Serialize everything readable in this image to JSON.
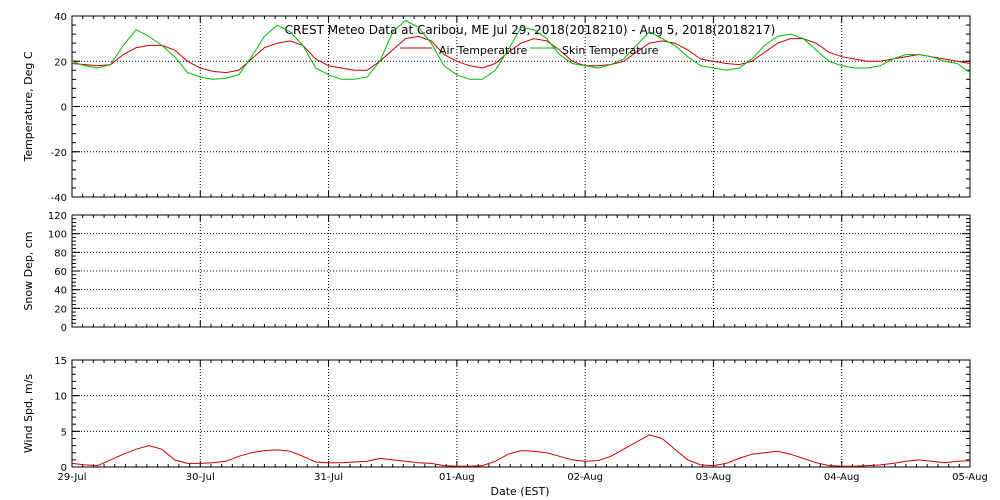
{
  "chart_data": [
    {
      "type": "line",
      "title": "CREST Meteo Data at Caribou, ME   Jul 29, 2018(2018210) - Aug  5, 2018(2018217)",
      "ylabel": "Temperature, Deg C",
      "ylim": [
        -40,
        40
      ],
      "yticks": [
        -40,
        -20,
        0,
        20,
        40
      ],
      "xlim": [
        0,
        7
      ],
      "grid": true,
      "legend": "top-center",
      "series": [
        {
          "name": "Air Temperature",
          "color": "#cc0000",
          "x": [
            0,
            0.1,
            0.2,
            0.3,
            0.4,
            0.5,
            0.6,
            0.7,
            0.8,
            0.9,
            1.0,
            1.1,
            1.2,
            1.3,
            1.4,
            1.5,
            1.6,
            1.7,
            1.8,
            1.9,
            2.0,
            2.1,
            2.2,
            2.3,
            2.4,
            2.5,
            2.6,
            2.7,
            2.8,
            2.9,
            3.0,
            3.1,
            3.2,
            3.3,
            3.4,
            3.5,
            3.6,
            3.7,
            3.8,
            3.9,
            4.0,
            4.1,
            4.2,
            4.3,
            4.4,
            4.5,
            4.6,
            4.7,
            4.8,
            4.9,
            5.0,
            5.1,
            5.2,
            5.3,
            5.4,
            5.5,
            5.6,
            5.7,
            5.8,
            5.9,
            6.0,
            6.1,
            6.2,
            6.3,
            6.4,
            6.5,
            6.6,
            6.7,
            6.8,
            6.9,
            7.0
          ],
          "y": [
            19,
            18.5,
            18,
            18.5,
            23,
            26,
            27,
            27,
            25,
            20,
            17,
            15.5,
            15,
            16,
            21,
            26,
            28,
            29,
            27,
            21,
            18,
            17,
            16,
            16,
            20,
            25,
            30,
            31,
            29,
            23,
            20,
            18,
            17,
            19,
            24,
            28,
            30,
            29,
            25,
            20,
            18,
            18,
            18.5,
            20,
            24,
            28,
            29,
            28,
            25,
            21,
            20,
            19,
            18.5,
            20,
            24,
            28,
            30,
            30,
            28,
            24,
            22,
            21,
            20,
            20,
            21,
            22,
            23,
            22,
            21,
            20,
            19
          ]
        },
        {
          "name": "Skin Temperature",
          "color": "#00bb00",
          "x": [
            0,
            0.1,
            0.2,
            0.3,
            0.4,
            0.5,
            0.6,
            0.7,
            0.8,
            0.9,
            1.0,
            1.1,
            1.2,
            1.3,
            1.4,
            1.5,
            1.6,
            1.7,
            1.8,
            1.9,
            2.0,
            2.1,
            2.2,
            2.3,
            2.4,
            2.5,
            2.6,
            2.7,
            2.8,
            2.9,
            3.0,
            3.1,
            3.2,
            3.3,
            3.4,
            3.5,
            3.6,
            3.7,
            3.8,
            3.9,
            4.0,
            4.1,
            4.2,
            4.3,
            4.4,
            4.5,
            4.6,
            4.7,
            4.8,
            4.9,
            5.0,
            5.1,
            5.2,
            5.3,
            5.4,
            5.5,
            5.6,
            5.7,
            5.8,
            5.9,
            6.0,
            6.1,
            6.2,
            6.3,
            6.4,
            6.5,
            6.6,
            6.7,
            6.8,
            6.9,
            7.0
          ],
          "y": [
            20,
            18,
            17,
            18.5,
            27,
            34,
            31,
            27,
            22,
            15,
            13,
            12,
            12.5,
            14,
            22,
            31,
            36,
            33,
            27,
            17,
            14,
            12,
            12,
            13,
            20,
            33,
            38,
            35,
            28,
            18,
            14,
            12,
            12,
            16,
            25,
            35,
            34,
            30,
            23,
            19,
            18,
            17,
            18.5,
            21,
            27,
            33,
            30,
            27,
            22,
            18,
            17,
            16,
            17,
            21,
            27,
            31,
            32,
            30,
            25,
            20,
            18,
            17,
            17,
            18,
            21,
            23,
            23,
            22,
            20,
            19,
            15
          ]
        }
      ]
    },
    {
      "type": "line",
      "ylabel": "Snow Dep, cm",
      "ylim": [
        0,
        120
      ],
      "yticks": [
        0,
        20,
        40,
        60,
        80,
        100,
        120
      ],
      "xlim": [
        0,
        7
      ],
      "grid": true,
      "series": []
    },
    {
      "type": "line",
      "ylabel": "Wind Spd, m/s",
      "xlabel": "Date (EST)",
      "ylim": [
        0,
        15
      ],
      "yticks": [
        0,
        5,
        10,
        15
      ],
      "xlim": [
        0,
        7
      ],
      "grid": true,
      "categories": [
        "29-Jul",
        "30-Jul",
        "31-Jul",
        "01-Aug",
        "02-Aug",
        "03-Aug",
        "04-Aug",
        "05-Aug"
      ],
      "series": [
        {
          "color": "#cc0000",
          "x": [
            0,
            0.1,
            0.2,
            0.3,
            0.4,
            0.5,
            0.6,
            0.7,
            0.8,
            0.9,
            1.0,
            1.1,
            1.2,
            1.3,
            1.4,
            1.5,
            1.6,
            1.7,
            1.8,
            1.9,
            2.0,
            2.1,
            2.2,
            2.3,
            2.4,
            2.5,
            2.6,
            2.7,
            2.8,
            2.9,
            3.0,
            3.1,
            3.2,
            3.3,
            3.4,
            3.5,
            3.6,
            3.7,
            3.8,
            3.9,
            4.0,
            4.1,
            4.2,
            4.3,
            4.4,
            4.5,
            4.6,
            4.7,
            4.8,
            4.9,
            5.0,
            5.1,
            5.2,
            5.3,
            5.4,
            5.5,
            5.6,
            5.7,
            5.8,
            5.9,
            6.0,
            6.1,
            6.2,
            6.3,
            6.4,
            6.5,
            6.6,
            6.7,
            6.8,
            6.9,
            7.0
          ],
          "y": [
            0.5,
            0.3,
            0.2,
            1.0,
            1.8,
            2.5,
            3.0,
            2.5,
            1.0,
            0.5,
            0.5,
            0.6,
            0.8,
            1.5,
            2.0,
            2.3,
            2.4,
            2.2,
            1.5,
            0.7,
            0.6,
            0.6,
            0.7,
            0.8,
            1.2,
            1.0,
            0.8,
            0.6,
            0.5,
            0.2,
            0.1,
            0.1,
            0.2,
            0.8,
            1.8,
            2.3,
            2.2,
            2.0,
            1.5,
            1.0,
            0.8,
            0.9,
            1.5,
            2.5,
            3.5,
            4.5,
            4.0,
            2.5,
            1.0,
            0.3,
            0.2,
            0.5,
            1.2,
            1.8,
            2.0,
            2.2,
            1.8,
            1.2,
            0.6,
            0.2,
            0.1,
            0.1,
            0.2,
            0.3,
            0.5,
            0.8,
            1.0,
            0.8,
            0.6,
            0.8,
            0.9
          ]
        }
      ]
    }
  ]
}
